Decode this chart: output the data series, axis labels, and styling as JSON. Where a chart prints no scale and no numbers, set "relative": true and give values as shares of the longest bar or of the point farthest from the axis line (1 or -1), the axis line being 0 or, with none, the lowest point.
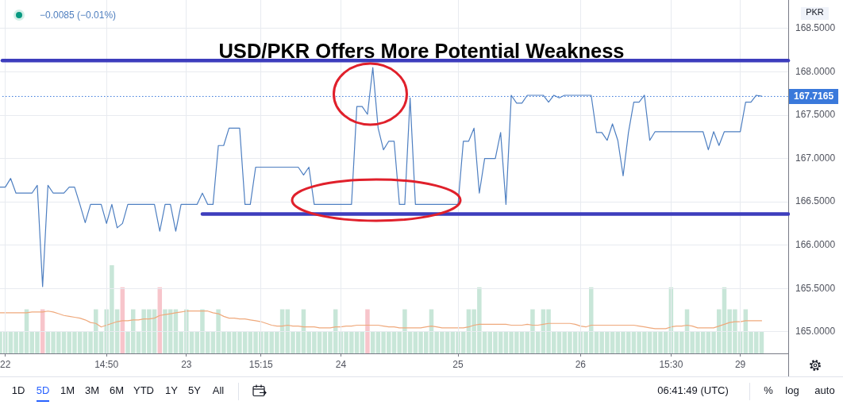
{
  "chart_data": [
    {
      "type": "line",
      "title": "USD/PKR Offers More Potential Weakness",
      "ylabel": "PKR",
      "categories": [
        null,
        "22",
        null,
        null,
        null,
        null,
        null,
        null,
        null,
        null,
        null,
        null,
        null,
        null,
        null,
        null,
        null,
        null,
        null,
        null,
        "14:50",
        null,
        null,
        null,
        null,
        null,
        null,
        null,
        null,
        null,
        null,
        null,
        null,
        null,
        null,
        "23",
        null,
        null,
        null,
        null,
        null,
        null,
        null,
        null,
        null,
        null,
        null,
        null,
        null,
        "15:15",
        null,
        null,
        null,
        null,
        null,
        null,
        null,
        null,
        null,
        null,
        null,
        null,
        null,
        null,
        "24",
        null,
        null,
        null,
        null,
        null,
        null,
        null,
        null,
        null,
        null,
        null,
        null,
        null,
        null,
        null,
        null,
        null,
        null,
        null,
        null,
        null,
        "25",
        null,
        null,
        null,
        null,
        null,
        null,
        null,
        null,
        null,
        null,
        null,
        null,
        null,
        null,
        null,
        null,
        null,
        null,
        null,
        null,
        null,
        null,
        "26",
        null,
        null,
        null,
        null,
        null,
        null,
        null,
        null,
        null,
        null,
        null,
        null,
        null,
        null,
        null,
        null,
        "15:30",
        null,
        null,
        null,
        null,
        null,
        null,
        null,
        null,
        null,
        null,
        null,
        null,
        "29",
        null,
        null,
        null,
        null,
        null,
        null,
        null,
        null,
        null
      ],
      "series": [
        {
          "type": "line",
          "color": "#4e7fc1",
          "values": [
            166.67,
            166.67,
            166.77,
            166.6,
            166.6,
            166.6,
            166.6,
            166.69,
            165.52,
            166.69,
            166.6,
            166.6,
            166.6,
            166.67,
            166.67,
            166.47,
            166.26,
            166.47,
            166.47,
            166.47,
            166.25,
            166.47,
            166.2,
            166.25,
            166.47,
            166.47,
            166.47,
            166.47,
            166.47,
            166.47,
            166.16,
            166.47,
            166.47,
            166.16,
            166.47,
            166.47,
            166.47,
            166.47,
            166.6,
            166.47,
            166.47,
            167.15,
            167.15,
            167.35,
            167.35,
            167.35,
            166.47,
            166.47,
            166.9,
            166.9,
            166.9,
            166.9,
            166.9,
            166.9,
            166.9,
            166.9,
            166.9,
            166.81,
            166.9,
            166.47,
            166.47,
            166.47,
            166.47,
            166.47,
            166.47,
            166.47,
            166.47,
            167.6,
            167.6,
            167.51,
            168.05,
            167.35,
            167.1,
            167.2,
            167.2,
            166.47,
            166.47,
            167.7,
            166.47,
            166.47,
            166.47,
            166.47,
            166.47,
            166.47,
            166.47,
            166.47,
            166.47,
            167.2,
            167.2,
            167.35,
            166.6,
            167.0,
            167.0,
            167.0,
            167.3,
            166.47,
            167.73,
            167.64,
            167.64,
            167.73,
            167.73,
            167.73,
            167.73,
            167.65,
            167.73,
            167.7,
            167.73,
            167.73,
            167.73,
            167.73,
            167.73,
            167.73,
            167.3,
            167.3,
            167.21,
            167.4,
            167.21,
            166.8,
            167.3,
            167.65,
            167.65,
            167.73,
            167.21,
            167.31,
            167.31,
            167.31,
            167.31,
            167.31,
            167.31,
            167.31,
            167.31,
            167.31,
            167.31,
            167.1,
            167.31,
            167.15,
            167.31,
            167.31,
            167.31,
            167.31,
            167.65,
            167.65,
            167.73,
            167.72,
            null,
            null,
            null,
            null,
            null
          ]
        },
        {
          "type": "line",
          "color": "#3d3dbd",
          "values": [
            null,
            null,
            null,
            null,
            null,
            null,
            null,
            null,
            null,
            null,
            null,
            null,
            null,
            null,
            null,
            null,
            null,
            null,
            null,
            null,
            null,
            null,
            null,
            null,
            null,
            null,
            null,
            null,
            null,
            null,
            null,
            null,
            null,
            null,
            null,
            null,
            null,
            null,
            166.36,
            166.36,
            166.36,
            166.36,
            166.36,
            166.36,
            166.36,
            166.36,
            166.36,
            166.36,
            166.36,
            166.36,
            166.36,
            166.36,
            166.36,
            166.36,
            166.36,
            166.36,
            166.36,
            166.36,
            166.36,
            166.36,
            166.36,
            166.36,
            166.36,
            166.36,
            166.36,
            166.36,
            166.36,
            166.36,
            166.36,
            166.36,
            166.36,
            166.36,
            166.36,
            166.36,
            166.36,
            166.36,
            166.36,
            166.36,
            166.36,
            166.36,
            166.36,
            166.36,
            166.36,
            166.36,
            166.36,
            166.36,
            166.36,
            166.36,
            166.36,
            166.36,
            166.36,
            166.36,
            166.36,
            166.36,
            166.36,
            166.36,
            166.36,
            166.36,
            166.36,
            166.36,
            166.36,
            166.36,
            166.36,
            166.36,
            166.36,
            166.36,
            166.36,
            166.36,
            166.36,
            166.36,
            166.36,
            166.36,
            166.36,
            166.36,
            166.36,
            166.36,
            166.36,
            166.36,
            166.36,
            166.36,
            166.36,
            166.36,
            166.36,
            166.36,
            166.36,
            166.36,
            166.36,
            166.36,
            166.36,
            166.36,
            166.36,
            166.36,
            166.36,
            166.36,
            166.36,
            166.36,
            166.36,
            166.36,
            166.36,
            166.36,
            166.36,
            166.36,
            166.36,
            166.36,
            166.36,
            166.36,
            166.36,
            166.36,
            166.36
          ]
        }
      ],
      "ylim": [
        164.75,
        168.83
      ],
      "yticks": [
        {
          "value": 165,
          "label": "165.0000"
        },
        {
          "value": 165.5,
          "label": "165.5000"
        },
        {
          "value": 166,
          "label": "166.0000"
        },
        {
          "value": 166.5,
          "label": "166.5000"
        },
        {
          "value": 167,
          "label": "167.0000"
        },
        {
          "value": 167.5,
          "label": "167.5000"
        },
        {
          "value": 168,
          "label": "168.0000"
        },
        {
          "value": 168.5,
          "label": "168.5000"
        }
      ],
      "ref_lines": [
        {
          "axis": "y",
          "value": 168.13,
          "color": "#3d3dbd",
          "line_style": "solid"
        },
        {
          "axis": "y",
          "value": 167.7165,
          "label": "167.7165",
          "color": "#3a79db",
          "line_style": "dotted"
        }
      ],
      "annotations": [
        "−0.0085 (−0.01%)",
        "1D",
        "5D",
        "1M",
        "3M",
        "6M",
        "YTD",
        "1Y",
        "5Y",
        "All",
        "06:41:49 (UTC)",
        "%",
        "log",
        "auto"
      ],
      "grid": true,
      "legend": false,
      "marker": "none",
      "line_style": "solid"
    },
    {
      "type": "bar",
      "relative": true,
      "categories": [
        null,
        null,
        null,
        null,
        null,
        null,
        null,
        null,
        null,
        null,
        null,
        null,
        null,
        null,
        null,
        null,
        null,
        null,
        null,
        null,
        null,
        null,
        null,
        null,
        null,
        null,
        null,
        null,
        null,
        null,
        null,
        null,
        null,
        null,
        null,
        null,
        null,
        null,
        null,
        null,
        null,
        null,
        null,
        null,
        null,
        null,
        null,
        null,
        null,
        null,
        null,
        null,
        null,
        null,
        null,
        null,
        null,
        null,
        null,
        null,
        null,
        null,
        null,
        null,
        null,
        null,
        null,
        null,
        null,
        null,
        null,
        null,
        null,
        null,
        null,
        null,
        null,
        null,
        null,
        null,
        null,
        null,
        null,
        null,
        null,
        null,
        null,
        null,
        null,
        null,
        null,
        null,
        null,
        null,
        null,
        null,
        null,
        null,
        null,
        null,
        null,
        null,
        null,
        null,
        null,
        null,
        null,
        null,
        null,
        null,
        null,
        null,
        null,
        null,
        null,
        null,
        null,
        null,
        null,
        null,
        null,
        null,
        null,
        null,
        null,
        null,
        null,
        null,
        null,
        null,
        null,
        null,
        null,
        null,
        null,
        null,
        null,
        null,
        null,
        null,
        null,
        null,
        null,
        null,
        null,
        null,
        null,
        null,
        null
      ],
      "legend": false,
      "marker": "none",
      "series": [
        {
          "type": "bar",
          "colors": [
            "#c8e6d8",
            "#c8e6d8",
            "#c8e6d8",
            "#c8e6d8",
            "#c8e6d8",
            "#c8e6d8",
            "#c8e6d8",
            "#c8e6d8",
            "#f7c5cb",
            "#c8e6d8",
            "#c8e6d8",
            "#c8e6d8",
            "#c8e6d8",
            "#c8e6d8",
            "#c8e6d8",
            "#c8e6d8",
            "#c8e6d8",
            "#c8e6d8",
            "#c8e6d8",
            "#c8e6d8",
            "#c8e6d8",
            "#c8e6d8",
            "#c8e6d8",
            "#f7c5cb",
            "#c8e6d8",
            "#c8e6d8",
            "#c8e6d8",
            "#c8e6d8",
            "#c8e6d8",
            "#c8e6d8",
            "#f7c5cb",
            "#c8e6d8",
            "#c8e6d8",
            "#c8e6d8",
            "#c8e6d8",
            "#c8e6d8",
            "#c8e6d8",
            "#c8e6d8",
            "#c8e6d8",
            "#c8e6d8",
            "#c8e6d8",
            "#c8e6d8",
            "#c8e6d8",
            "#c8e6d8",
            "#c8e6d8",
            "#c8e6d8",
            "#c8e6d8",
            "#c8e6d8",
            "#c8e6d8",
            "#c8e6d8",
            "#c8e6d8",
            "#c8e6d8",
            "#c8e6d8",
            "#c8e6d8",
            "#c8e6d8",
            "#c8e6d8",
            "#c8e6d8",
            "#c8e6d8",
            "#c8e6d8",
            "#c8e6d8",
            "#c8e6d8",
            "#c8e6d8",
            "#c8e6d8",
            "#c8e6d8",
            "#c8e6d8",
            "#c8e6d8",
            "#c8e6d8",
            "#c8e6d8",
            "#c8e6d8",
            "#f7c5cb",
            "#c8e6d8",
            "#c8e6d8",
            "#c8e6d8",
            "#c8e6d8",
            "#c8e6d8",
            "#c8e6d8",
            "#c8e6d8",
            "#c8e6d8",
            "#c8e6d8",
            "#c8e6d8",
            "#c8e6d8",
            "#c8e6d8",
            "#c8e6d8",
            "#c8e6d8",
            "#c8e6d8",
            "#c8e6d8",
            "#c8e6d8",
            "#c8e6d8",
            "#c8e6d8",
            "#c8e6d8",
            "#c8e6d8",
            "#c8e6d8",
            "#c8e6d8",
            "#c8e6d8",
            "#c8e6d8",
            "#c8e6d8",
            "#c8e6d8",
            "#c8e6d8",
            "#c8e6d8",
            "#c8e6d8",
            "#c8e6d8",
            "#c8e6d8",
            "#c8e6d8",
            "#c8e6d8",
            "#c8e6d8",
            "#c8e6d8",
            "#c8e6d8",
            "#c8e6d8",
            "#c8e6d8",
            "#c8e6d8",
            "#c8e6d8",
            "#c8e6d8",
            "#c8e6d8",
            "#c8e6d8",
            "#c8e6d8",
            "#c8e6d8",
            "#c8e6d8",
            "#c8e6d8",
            "#c8e6d8",
            "#c8e6d8",
            "#c8e6d8",
            "#c8e6d8",
            "#c8e6d8",
            "#c8e6d8",
            "#c8e6d8",
            "#c8e6d8",
            "#c8e6d8",
            "#c8e6d8",
            "#c8e6d8",
            "#c8e6d8",
            "#c8e6d8",
            "#c8e6d8",
            "#c8e6d8",
            "#c8e6d8",
            "#c8e6d8",
            "#c8e6d8",
            "#c8e6d8",
            "#c8e6d8",
            "#c8e6d8",
            "#c8e6d8",
            "#c8e6d8",
            "#c8e6d8",
            "#c8e6d8",
            "#c8e6d8",
            null,
            null,
            null,
            null,
            null
          ],
          "values": [
            0.25,
            0.25,
            0.25,
            0.25,
            0.25,
            0.5,
            0.25,
            0.25,
            0.5,
            0.25,
            0.25,
            0.25,
            0.25,
            0.25,
            0.25,
            0.25,
            0.25,
            0.25,
            0.5,
            0.25,
            0.5,
            1,
            0.5,
            0.75,
            0.25,
            0.5,
            0.25,
            0.5,
            0.5,
            0.5,
            0.75,
            0.5,
            0.5,
            0.5,
            0.25,
            0.5,
            0.25,
            0.25,
            0.5,
            0.25,
            0.25,
            0.5,
            0.25,
            0.25,
            0.25,
            0.25,
            0.25,
            0.25,
            0.25,
            0.25,
            0.25,
            0.25,
            0.25,
            0.5,
            0.5,
            0.25,
            0.25,
            0.5,
            0.25,
            0.25,
            0.25,
            0.25,
            0.25,
            0.5,
            0.25,
            0.25,
            0.25,
            0.25,
            0.25,
            0.5,
            0.25,
            0.25,
            0.25,
            0.25,
            0.25,
            0.25,
            0.5,
            0.25,
            0.25,
            0.25,
            0.25,
            0.5,
            0.25,
            0.25,
            0.25,
            0.25,
            0.25,
            0.25,
            0.5,
            0.5,
            0.75,
            0.25,
            0.25,
            0.25,
            0.25,
            0.25,
            0.25,
            0.25,
            0.25,
            0.25,
            0.5,
            0.25,
            0.5,
            0.5,
            0.25,
            0.25,
            0.25,
            0.25,
            0.25,
            0.25,
            0.25,
            0.75,
            0.25,
            0.25,
            0.25,
            0.25,
            0.25,
            0.25,
            0.25,
            0.25,
            0.25,
            0.25,
            0.25,
            0.25,
            0.25,
            0.25,
            0.75,
            0.25,
            0.25,
            0.5,
            0.25,
            0.25,
            0.25,
            0.25,
            0.25,
            0.5,
            0.75,
            0.5,
            0.5,
            0.25,
            0.5,
            0.25,
            0.25,
            0.25,
            null,
            null,
            null,
            null,
            null
          ]
        },
        {
          "type": "line",
          "color": "#efa97c",
          "values": [
            0.46,
            0.46,
            0.46,
            0.46,
            0.46,
            0.46,
            0.47,
            0.47,
            0.47,
            0.48,
            0.47,
            0.45,
            0.43,
            0.42,
            0.41,
            0.4,
            0.38,
            0.35,
            0.34,
            0.3,
            0.32,
            0.34,
            0.36,
            0.37,
            0.37,
            0.38,
            0.38,
            0.39,
            0.39,
            0.4,
            0.43,
            0.44,
            0.45,
            0.46,
            0.47,
            0.48,
            0.48,
            0.48,
            0.48,
            0.48,
            0.46,
            0.45,
            0.42,
            0.4,
            0.4,
            0.39,
            0.39,
            0.38,
            0.37,
            0.36,
            0.34,
            0.32,
            0.31,
            0.31,
            0.32,
            0.31,
            0.31,
            0.3,
            0.3,
            0.3,
            0.29,
            0.29,
            0.29,
            0.3,
            0.3,
            0.31,
            0.31,
            0.32,
            0.32,
            0.32,
            0.32,
            0.32,
            0.31,
            0.3,
            0.3,
            0.29,
            0.29,
            0.29,
            0.29,
            0.29,
            0.3,
            0.31,
            0.3,
            0.29,
            0.29,
            0.29,
            0.29,
            0.29,
            0.3,
            0.32,
            0.33,
            0.33,
            0.33,
            0.33,
            0.33,
            0.33,
            0.32,
            0.32,
            0.32,
            0.33,
            0.32,
            0.32,
            0.33,
            0.34,
            0.34,
            0.34,
            0.34,
            0.34,
            0.33,
            0.31,
            0.3,
            0.32,
            0.32,
            0.32,
            0.32,
            0.32,
            0.32,
            0.32,
            0.32,
            0.32,
            0.31,
            0.3,
            0.29,
            0.28,
            0.28,
            0.28,
            0.3,
            0.31,
            0.31,
            0.32,
            0.31,
            0.29,
            0.29,
            0.29,
            0.29,
            0.31,
            0.33,
            0.35,
            0.36,
            0.36,
            0.37,
            0.37,
            0.37,
            0.37,
            null,
            null,
            null,
            null,
            null
          ]
        }
      ]
    }
  ]
}
